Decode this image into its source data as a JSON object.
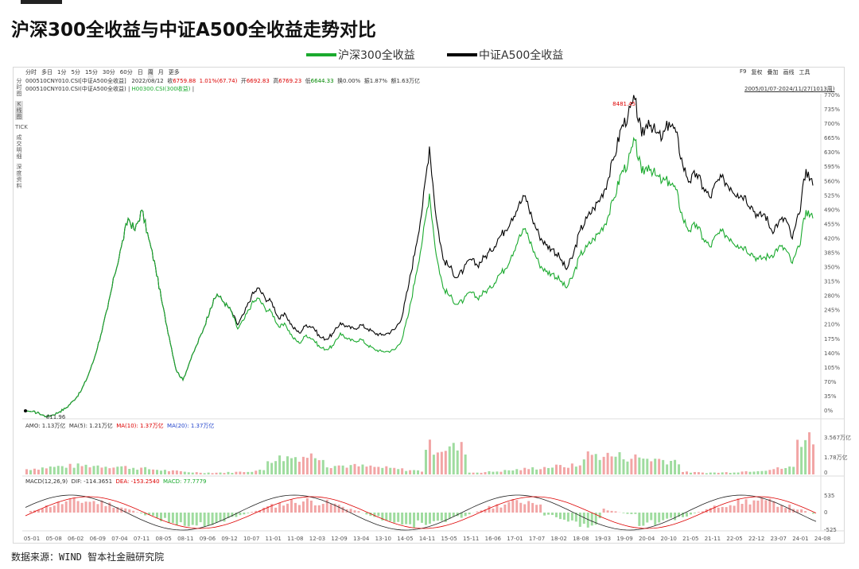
{
  "title": "沪深300全收益与中证A500全收益走势对比",
  "legend": [
    {
      "name": "沪深300全收益",
      "color": "#1aaa2e"
    },
    {
      "name": "中证A500全收益",
      "color": "#000000"
    }
  ],
  "toolbar": {
    "periods": [
      "分时",
      "多日",
      "1分",
      "5分",
      "15分",
      "30分",
      "60分",
      "日",
      "周",
      "月",
      "更多"
    ],
    "active_period": "周",
    "right_tools": [
      "F9",
      "复权",
      "叠加",
      "画线",
      "工具"
    ]
  },
  "sidenav": [
    "分时图",
    "K线图",
    "TICK",
    "成交明细",
    "深度资料"
  ],
  "info_line1": {
    "code": "000510CNY010.CSI[中证A500全收益]",
    "date": "2022/08/12",
    "close_label": "收",
    "close": "6759.88",
    "change": "1.01%(67.74)",
    "open_label": "开",
    "open": "6692.83",
    "high_label": "高",
    "high": "6769.23",
    "low_label": "低",
    "low": "6644.33",
    "turnover": "换0.00%",
    "amplitude": "振1.87%",
    "amount": "额1.63万亿"
  },
  "info_line2": {
    "series_a": "000510CNY010.CSI(中证A500全收益)",
    "series_b": "H00300.CSI(300收益)",
    "date_range": "2005/01/07-2024/11/27(1013周)"
  },
  "volume_panel": {
    "label": "AMO: 1.13万亿",
    "ma5": "MA(5): 1.21万亿",
    "ma10": "MA(10): 1.37万亿",
    "ma20": "MA(20): 1.37万亿",
    "ticks": [
      "3.567万亿",
      "1.78万亿",
      "0"
    ]
  },
  "macd_panel": {
    "label": "MACD(12,26,9)",
    "dif": "DIF: -114.3651",
    "dea": "DEA: -153.2540",
    "macd": "MACD: 77.7779",
    "ticks": [
      "535",
      "0",
      "-525"
    ]
  },
  "chart_data": {
    "type": "line",
    "title": "沪深300全收益与中证A500全收益走势对比",
    "xlabel": "",
    "ylabel": "",
    "y_unit": "%",
    "ylim": [
      0,
      770
    ],
    "yticks": [
      "770%",
      "735%",
      "700%",
      "665%",
      "630%",
      "595%",
      "560%",
      "525%",
      "490%",
      "455%",
      "420%",
      "385%",
      "350%",
      "315%",
      "280%",
      "245%",
      "210%",
      "175%",
      "140%",
      "105%",
      "70%",
      "35%",
      "0%"
    ],
    "xticks": [
      "05-01",
      "05-08",
      "06-02",
      "06-09",
      "07-04",
      "07-11",
      "08-05",
      "08-11",
      "09-06",
      "09-12",
      "10-07",
      "11-01",
      "11-08",
      "12-03",
      "12-09",
      "13-04",
      "13-10",
      "14-05",
      "14-11",
      "15-05",
      "15-11",
      "16-06",
      "17-01",
      "17-07",
      "18-02",
      "18-08",
      "19-03",
      "19-09",
      "20-04",
      "20-10",
      "21-05",
      "21-11",
      "22-05",
      "22-12",
      "23-07",
      "24-01",
      "24-08"
    ],
    "annotations": [
      {
        "text": "8481.45",
        "x": "20-12",
        "y": 760
      },
      {
        "text": "811.96",
        "x": "05-07",
        "y": -12
      }
    ],
    "legend_position": "top-center",
    "grid": false,
    "series": [
      {
        "name": "沪深300全收益",
        "color": "#1aaa2e",
        "points": [
          [
            0,
            0
          ],
          [
            0.5,
            -2
          ],
          [
            1,
            -6
          ],
          [
            1.5,
            -14
          ],
          [
            2,
            -10
          ],
          [
            2.5,
            -2
          ],
          [
            3,
            8
          ],
          [
            3.5,
            25
          ],
          [
            4,
            45
          ],
          [
            4.5,
            80
          ],
          [
            5,
            125
          ],
          [
            5.5,
            185
          ],
          [
            6,
            250
          ],
          [
            6.5,
            330
          ],
          [
            7,
            400
          ],
          [
            7.5,
            470
          ],
          [
            8,
            440
          ],
          [
            8.5,
            490
          ],
          [
            9,
            420
          ],
          [
            9.5,
            350
          ],
          [
            10,
            260
          ],
          [
            10.5,
            180
          ],
          [
            11,
            100
          ],
          [
            11.5,
            75
          ],
          [
            12,
            120
          ],
          [
            12.5,
            160
          ],
          [
            13,
            200
          ],
          [
            13.5,
            250
          ],
          [
            14,
            285
          ],
          [
            14.5,
            265
          ],
          [
            15,
            245
          ],
          [
            15.5,
            200
          ],
          [
            16,
            225
          ],
          [
            16.5,
            260
          ],
          [
            17,
            275
          ],
          [
            17.5,
            250
          ],
          [
            18,
            240
          ],
          [
            18.5,
            205
          ],
          [
            19,
            210
          ],
          [
            19.5,
            180
          ],
          [
            20,
            165
          ],
          [
            20.5,
            185
          ],
          [
            21,
            175
          ],
          [
            21.5,
            155
          ],
          [
            22,
            150
          ],
          [
            22.5,
            160
          ],
          [
            23,
            190
          ],
          [
            23.5,
            175
          ],
          [
            24,
            170
          ],
          [
            24.5,
            175
          ],
          [
            25,
            160
          ],
          [
            25.5,
            150
          ],
          [
            26,
            145
          ],
          [
            26.5,
            145
          ],
          [
            27,
            150
          ],
          [
            27.5,
            175
          ],
          [
            28,
            240
          ],
          [
            28.5,
            330
          ],
          [
            29,
            420
          ],
          [
            29.5,
            530
          ],
          [
            30,
            380
          ],
          [
            30.5,
            300
          ],
          [
            31,
            280
          ],
          [
            31.5,
            260
          ],
          [
            32,
            270
          ],
          [
            32.5,
            290
          ],
          [
            33,
            275
          ],
          [
            33.5,
            290
          ],
          [
            34,
            300
          ],
          [
            34.5,
            330
          ],
          [
            35,
            345
          ],
          [
            35.5,
            380
          ],
          [
            36,
            420
          ],
          [
            36.5,
            445
          ],
          [
            37,
            400
          ],
          [
            37.5,
            360
          ],
          [
            38,
            340
          ],
          [
            38.5,
            335
          ],
          [
            39,
            320
          ],
          [
            39.5,
            300
          ],
          [
            40,
            330
          ],
          [
            40.5,
            380
          ],
          [
            41,
            400
          ],
          [
            41.5,
            420
          ],
          [
            42,
            440
          ],
          [
            42.5,
            470
          ],
          [
            43,
            520
          ],
          [
            43.5,
            580
          ],
          [
            44,
            605
          ],
          [
            44.5,
            660
          ],
          [
            45,
            580
          ],
          [
            45.5,
            600
          ],
          [
            46,
            575
          ],
          [
            46.5,
            560
          ],
          [
            47,
            560
          ],
          [
            47.5,
            540
          ],
          [
            48,
            470
          ],
          [
            48.5,
            440
          ],
          [
            49,
            455
          ],
          [
            49.5,
            420
          ],
          [
            50,
            400
          ],
          [
            50.5,
            430
          ],
          [
            51,
            435
          ],
          [
            51.5,
            420
          ],
          [
            52,
            405
          ],
          [
            52.5,
            400
          ],
          [
            53,
            385
          ],
          [
            53.5,
            370
          ],
          [
            54,
            375
          ],
          [
            54.5,
            380
          ],
          [
            55,
            400
          ],
          [
            55.5,
            395
          ],
          [
            56,
            360
          ],
          [
            56.5,
            400
          ],
          [
            57,
            490
          ],
          [
            57.5,
            470
          ]
        ]
      },
      {
        "name": "中证A500全收益",
        "color": "#000000",
        "points": [
          [
            0,
            0
          ],
          [
            0.5,
            -2
          ],
          [
            1,
            -6
          ],
          [
            1.5,
            -14
          ],
          [
            2,
            -10
          ],
          [
            2.5,
            -2
          ],
          [
            3,
            8
          ],
          [
            3.5,
            25
          ],
          [
            4,
            45
          ],
          [
            4.5,
            80
          ],
          [
            5,
            125
          ],
          [
            5.5,
            185
          ],
          [
            6,
            250
          ],
          [
            6.5,
            330
          ],
          [
            7,
            400
          ],
          [
            7.5,
            470
          ],
          [
            8,
            440
          ],
          [
            8.5,
            490
          ],
          [
            9,
            420
          ],
          [
            9.5,
            350
          ],
          [
            10,
            260
          ],
          [
            10.5,
            180
          ],
          [
            11,
            100
          ],
          [
            11.5,
            75
          ],
          [
            12,
            120
          ],
          [
            12.5,
            160
          ],
          [
            13,
            200
          ],
          [
            13.5,
            250
          ],
          [
            14,
            285
          ],
          [
            14.5,
            265
          ],
          [
            15,
            245
          ],
          [
            15.5,
            210
          ],
          [
            16,
            240
          ],
          [
            16.5,
            280
          ],
          [
            17,
            300
          ],
          [
            17.5,
            275
          ],
          [
            18,
            265
          ],
          [
            18.5,
            225
          ],
          [
            19,
            235
          ],
          [
            19.5,
            205
          ],
          [
            20,
            190
          ],
          [
            20.5,
            210
          ],
          [
            21,
            205
          ],
          [
            21.5,
            180
          ],
          [
            22,
            175
          ],
          [
            22.5,
            190
          ],
          [
            23,
            215
          ],
          [
            23.5,
            205
          ],
          [
            24,
            200
          ],
          [
            24.5,
            210
          ],
          [
            25,
            200
          ],
          [
            25.5,
            190
          ],
          [
            26,
            185
          ],
          [
            26.5,
            190
          ],
          [
            27,
            200
          ],
          [
            27.5,
            230
          ],
          [
            28,
            310
          ],
          [
            28.5,
            400
          ],
          [
            29,
            500
          ],
          [
            29.5,
            645
          ],
          [
            30,
            470
          ],
          [
            30.5,
            370
          ],
          [
            31,
            350
          ],
          [
            31.5,
            325
          ],
          [
            32,
            345
          ],
          [
            32.5,
            370
          ],
          [
            33,
            355
          ],
          [
            33.5,
            375
          ],
          [
            34,
            390
          ],
          [
            34.5,
            420
          ],
          [
            35,
            440
          ],
          [
            35.5,
            470
          ],
          [
            36,
            500
          ],
          [
            36.5,
            525
          ],
          [
            37,
            470
          ],
          [
            37.5,
            430
          ],
          [
            38,
            405
          ],
          [
            38.5,
            395
          ],
          [
            39,
            375
          ],
          [
            39.5,
            345
          ],
          [
            40,
            380
          ],
          [
            40.5,
            440
          ],
          [
            41,
            470
          ],
          [
            41.5,
            495
          ],
          [
            42,
            520
          ],
          [
            42.5,
            560
          ],
          [
            43,
            620
          ],
          [
            43.5,
            690
          ],
          [
            44,
            720
          ],
          [
            44.5,
            760
          ],
          [
            45,
            670
          ],
          [
            45.5,
            710
          ],
          [
            46,
            680
          ],
          [
            46.5,
            665
          ],
          [
            47,
            705
          ],
          [
            47.5,
            680
          ],
          [
            48,
            600
          ],
          [
            48.5,
            560
          ],
          [
            49,
            580
          ],
          [
            49.5,
            545
          ],
          [
            50,
            520
          ],
          [
            50.5,
            560
          ],
          [
            51,
            565
          ],
          [
            51.5,
            545
          ],
          [
            52,
            530
          ],
          [
            52.5,
            525
          ],
          [
            53,
            500
          ],
          [
            53.5,
            475
          ],
          [
            54,
            480
          ],
          [
            54.5,
            440
          ],
          [
            55,
            460
          ],
          [
            55.5,
            470
          ],
          [
            56,
            420
          ],
          [
            56.5,
            480
          ],
          [
            57,
            590
          ],
          [
            57.5,
            550
          ]
        ]
      }
    ]
  }
}
